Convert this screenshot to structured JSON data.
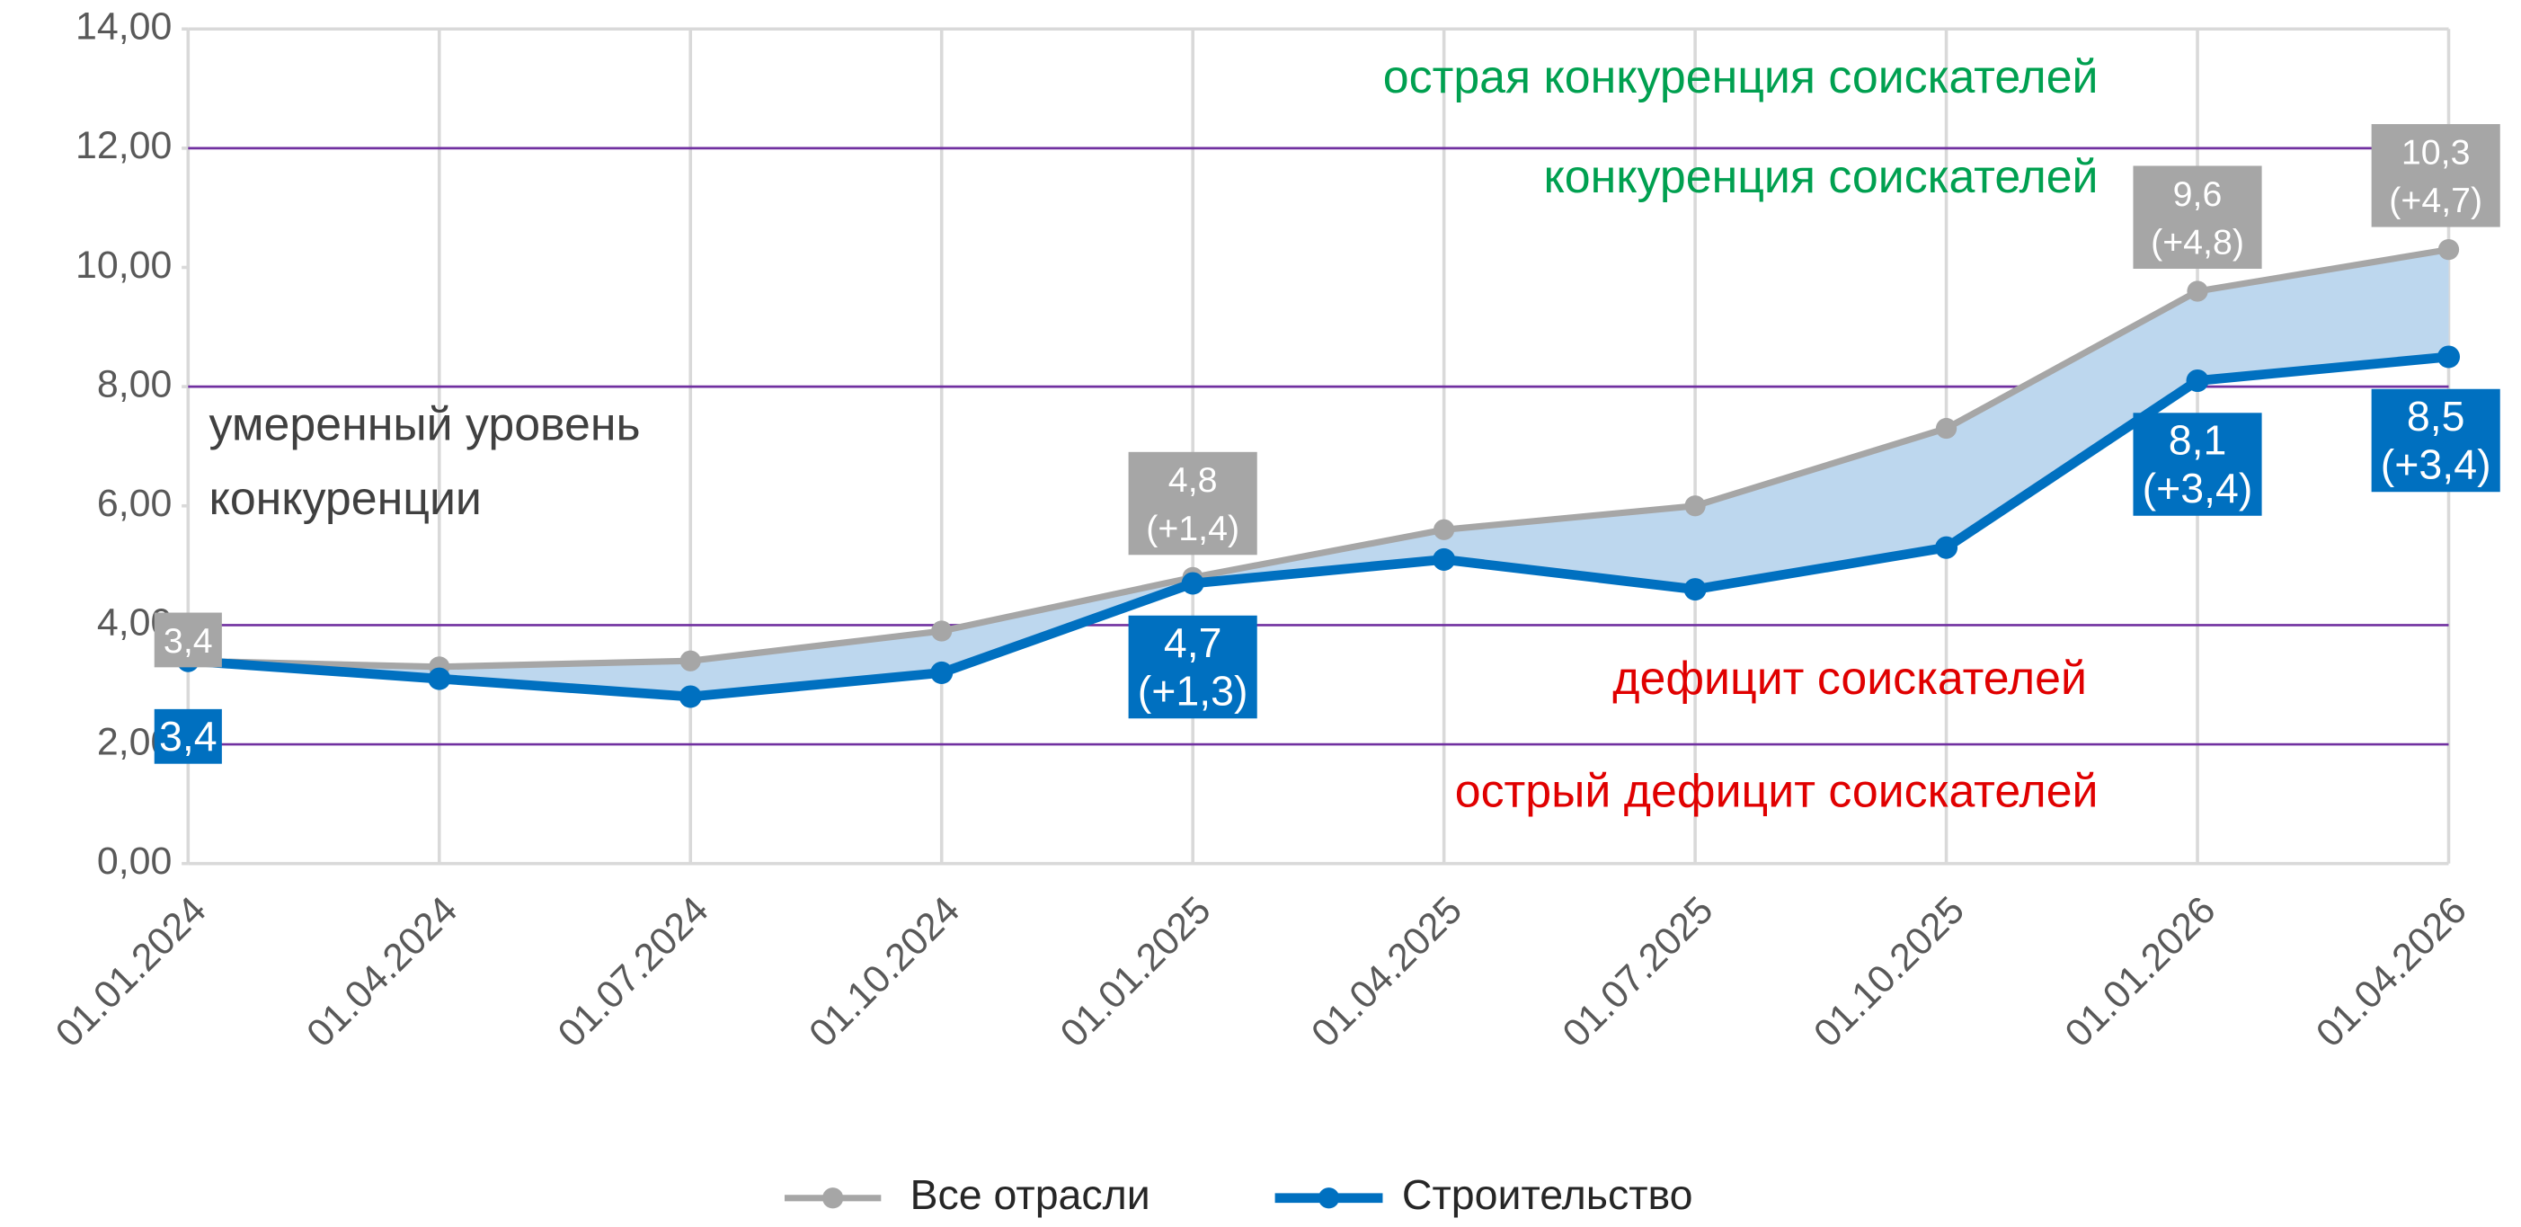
{
  "chart_data": {
    "type": "line",
    "categories": [
      "01.01.2024",
      "01.04.2024",
      "01.07.2024",
      "01.10.2024",
      "01.01.2025",
      "01.04.2025",
      "01.07.2025",
      "01.10.2025",
      "01.01.2026",
      "01.04.2026"
    ],
    "series": [
      {
        "name": "Все отрасли",
        "color": "#a6a6a6",
        "values": [
          3.4,
          3.3,
          3.4,
          3.9,
          4.8,
          5.6,
          6.0,
          7.3,
          9.6,
          10.3
        ],
        "value_labels": [
          [
            "3,4"
          ],
          null,
          null,
          null,
          [
            "4,8",
            "(+1,4)"
          ],
          null,
          null,
          null,
          [
            "9,6",
            "(+4,8)"
          ],
          [
            "10,3",
            "(+4,7)"
          ]
        ]
      },
      {
        "name": "Строительство",
        "color": "#0070c0",
        "values": [
          3.4,
          3.1,
          2.8,
          3.2,
          4.7,
          5.1,
          4.6,
          5.3,
          8.1,
          8.5
        ],
        "value_labels": [
          [
            "3,4"
          ],
          null,
          null,
          null,
          [
            "4,7",
            "(+1,3)"
          ],
          null,
          null,
          null,
          [
            "8,1",
            "(+3,4)"
          ],
          [
            "8,5",
            "(+3,4)"
          ]
        ]
      }
    ],
    "ylim": [
      0,
      14
    ],
    "yticks": [
      {
        "value": 0,
        "label": "0,00"
      },
      {
        "value": 2,
        "label": "2,00"
      },
      {
        "value": 4,
        "label": "4,00"
      },
      {
        "value": 6,
        "label": "6,00"
      },
      {
        "value": 8,
        "label": "8,00"
      },
      {
        "value": 10,
        "label": "10,00"
      },
      {
        "value": 12,
        "label": "12,00"
      },
      {
        "value": 14,
        "label": "14,00"
      }
    ],
    "threshold_lines": [
      2,
      4,
      8,
      12
    ],
    "threshold_color": "#7030a0",
    "fill_color": "#bdd7ee",
    "annotations": [
      {
        "text": "острая конкуренция соискателей",
        "color": "#00a050"
      },
      {
        "text": "конкуренция соискателей",
        "color": "#00a050"
      },
      {
        "text": "умеренный уровень",
        "color": "#404040"
      },
      {
        "text": "конкуренции",
        "color": "#404040"
      },
      {
        "text": "дефицит соискателей",
        "color": "#e00000"
      },
      {
        "text": "острый дефицит соискателей",
        "color": "#e00000"
      }
    ],
    "legend": "bottom"
  }
}
